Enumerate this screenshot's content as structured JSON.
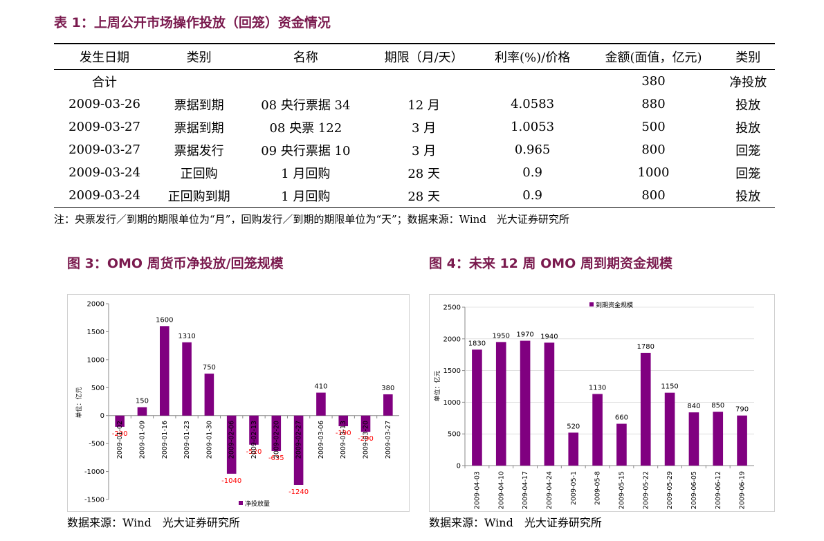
{
  "table": {
    "title": "表 1：上周公开市场操作投放（回笼）资金情况",
    "headers": [
      "发生日期",
      "类别",
      "名称",
      "期限（月/天）",
      "利率(%)/价格",
      "金额(面值，亿元)",
      "类别"
    ],
    "rows": [
      [
        "合计",
        "",
        "",
        "",
        "",
        "380",
        "净投放"
      ],
      [
        "2009-03-26",
        "票据到期",
        "08 央行票据 34",
        "12 月",
        "4.0583",
        "880",
        "投放"
      ],
      [
        "2009-03-27",
        "票据到期",
        "08 央票 122",
        "3 月",
        "1.0053",
        "500",
        "投放"
      ],
      [
        "2009-03-27",
        "票据发行",
        "09 央行票据 10",
        "3 月",
        "0.965",
        "800",
        "回笼"
      ],
      [
        "2009-03-24",
        "正回购",
        "1 月回购",
        "28 天",
        "0.9",
        "1000",
        "回笼"
      ],
      [
        "2009-03-24",
        "正回购到期",
        "1 月回购",
        "28 天",
        "0.9",
        "800",
        "投放"
      ]
    ],
    "note": "注：央票发行／到期的期限单位为“月”，回购发行／到期的期限单位为“天”；数据来源：Wind　光大证券研究所"
  },
  "figures": {
    "fig3_title": "图 3：OMO 周货币净投放/回笼规模",
    "fig4_title": "图 4：未来 12 周 OMO 周到期资金规模",
    "fig3_source": "数据来源：Wind　光大证券研究所",
    "fig4_source": "数据来源：Wind　光大证券研究所"
  },
  "colors": {
    "bar": "#800080",
    "negative_label": "#ff0000",
    "title": "#7a1a4e"
  },
  "chart_data": [
    {
      "type": "bar",
      "title": "图 3：OMO 周货币净投放/回笼规模",
      "ylabel": "单位：亿元",
      "ylim": [
        -1500,
        2000
      ],
      "yticks": [
        -1500,
        -1000,
        -500,
        0,
        500,
        1000,
        1500,
        2000
      ],
      "categories": [
        "2009-01-02",
        "2009-01-09",
        "2009-01-16",
        "2009-01-23",
        "2009-01-30",
        "2009-02-06",
        "2009-02-13",
        "2009-02-20",
        "2009-02-27",
        "2009-03-06",
        "2009-03-13",
        "2009-03-20",
        "2009-03-27"
      ],
      "series": [
        {
          "name": "净投放量",
          "values": [
            -200,
            150,
            1600,
            1310,
            750,
            -1040,
            -520,
            -635,
            -1240,
            410,
            -190,
            -290,
            380
          ]
        }
      ],
      "legend": "bottom"
    },
    {
      "type": "bar",
      "title": "图 4：未来 12 周 OMO 周到期资金规模",
      "ylabel": "单位：亿元",
      "ylim": [
        0,
        2500
      ],
      "yticks": [
        0,
        500,
        1000,
        1500,
        2000,
        2500
      ],
      "categories": [
        "2009-04-03",
        "2009-04-10",
        "2009-04-17",
        "2009-04-24",
        "2009-05-1",
        "2009-05-8",
        "2009-05-15",
        "2009-05-22",
        "2009-05-29",
        "2009-06-05",
        "2009-06-12",
        "2009-06-19"
      ],
      "series": [
        {
          "name": "到期资金规模",
          "values": [
            1830,
            1950,
            1970,
            1940,
            520,
            1130,
            660,
            1780,
            1150,
            840,
            850,
            790
          ]
        }
      ],
      "legend": "top"
    }
  ]
}
